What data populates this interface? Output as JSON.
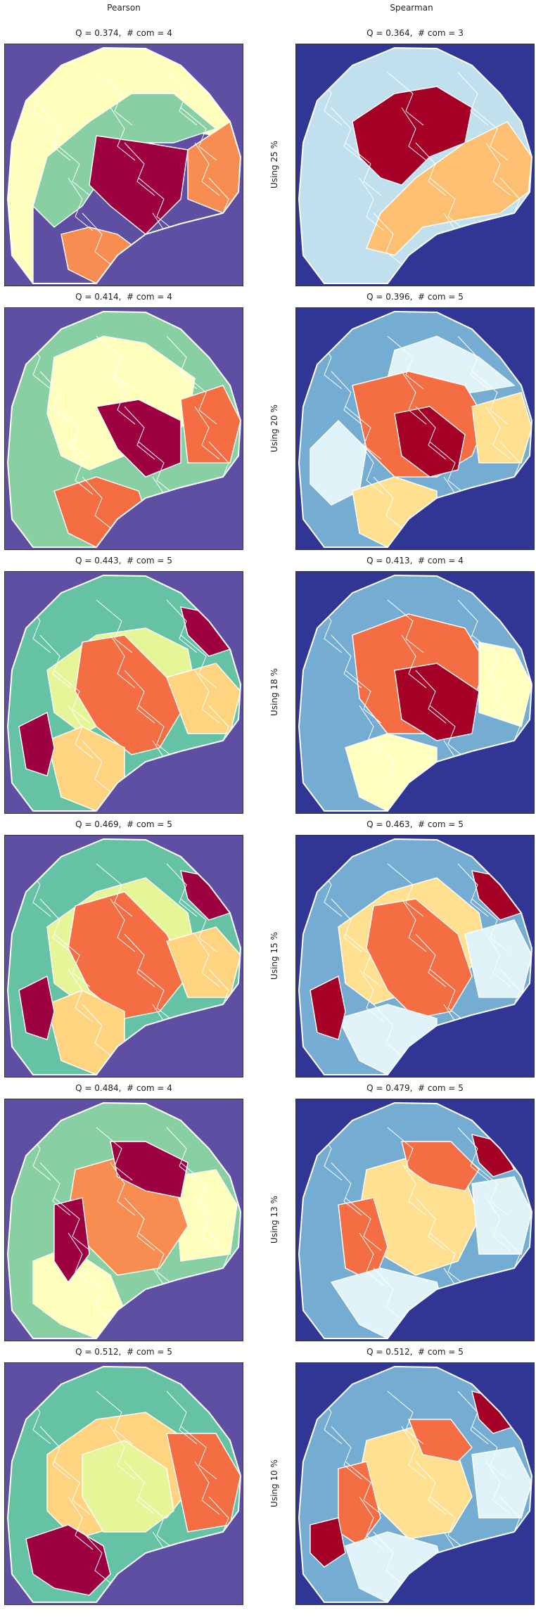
{
  "columns": {
    "left": "Pearson",
    "right": "Spearman"
  },
  "rows": [
    {
      "label": "Using 25 %",
      "pearson": "Q = 0.374,  # com = 4",
      "spearman": "Q = 0.364,  # com = 3"
    },
    {
      "label": "Using 20 %",
      "pearson": "Q = 0.414,  # com = 4",
      "spearman": "Q = 0.396,  # com = 5"
    },
    {
      "label": "Using 18 %",
      "pearson": "Q = 0.443,  # com = 5",
      "spearman": "Q = 0.413,  # com = 4"
    },
    {
      "label": "Using 15 %",
      "pearson": "Q = 0.469,  # com = 5",
      "spearman": "Q = 0.463,  # com = 5"
    },
    {
      "label": "Using 13 %",
      "pearson": "Q = 0.484,  # com = 4",
      "spearman": "Q = 0.479,  # com = 5"
    },
    {
      "label": "Using 10 %",
      "pearson": "Q = 0.512,  # com = 5",
      "spearman": "Q = 0.512,  # com = 5"
    }
  ],
  "colors": {
    "pearson_bg": "#5e4fa2",
    "spearman_bg": "#313695",
    "pearson_palette": [
      "#fefebd",
      "#88cfa4",
      "#66c2a5",
      "#e6f598",
      "#fed480",
      "#f46d43",
      "#f88d52",
      "#9e0142"
    ],
    "spearman_palette": [
      "#bfe0ec",
      "#74add1",
      "#e0f3f8",
      "#fee090",
      "#fdbf71",
      "#f46d43",
      "#a50026",
      "#ffffbf"
    ],
    "outline": "#ffffff"
  }
}
